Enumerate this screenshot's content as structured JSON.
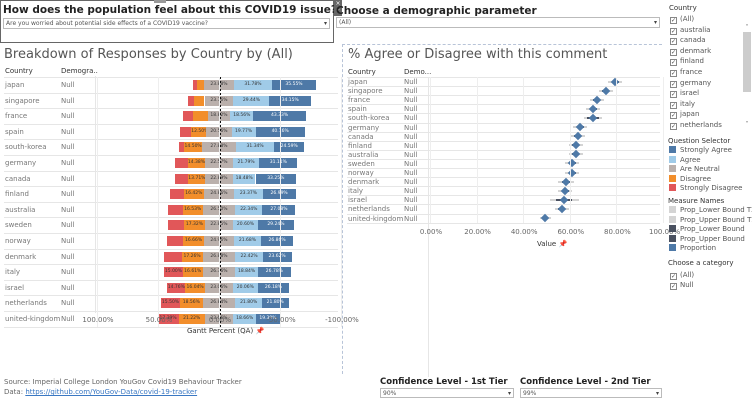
{
  "question_filter": {
    "title": "How does the population feel about this COVID19 issue?",
    "selected": "Are you worried about potential side effects of a COVID19 vaccine?"
  },
  "demographic_filter": {
    "title": "Choose a demographic parameter",
    "selected": "(All)"
  },
  "left_sheet": {
    "title": "Breakdown of Responses by Country by (All)",
    "col_country": "Country",
    "col_demo": "Demogra..",
    "x_axis_title": "Gantt Percent (QA)",
    "x_ticks": [
      "100.00%",
      "50.00%",
      "0.00%",
      "-50.00%",
      "-100.00%"
    ]
  },
  "right_sheet": {
    "title": "% Agree or Disagree with this comment",
    "col_country": "Country",
    "col_demo": "Demo...",
    "x_axis_title": "Value",
    "x_ticks": [
      "0.00%",
      "20.00%",
      "40.00%",
      "60.00%",
      "80.00%",
      "100.00%"
    ]
  },
  "country_filter": {
    "title": "Country",
    "items": [
      "(All)",
      "australia",
      "canada",
      "denmark",
      "finland",
      "france",
      "germany",
      "israel",
      "italy",
      "japan",
      "netherlands"
    ]
  },
  "question_legend": {
    "title": "Question Selector",
    "items": [
      {
        "label": "Strongly Agree",
        "color": "#4e79a7"
      },
      {
        "label": "Agree",
        "color": "#a0cbe8"
      },
      {
        "label": "Are Neutral",
        "color": "#bab0ac"
      },
      {
        "label": "Disagree",
        "color": "#f28e2b"
      },
      {
        "label": "Strongly Disagree",
        "color": "#e15759"
      }
    ]
  },
  "measure_legend": {
    "title": "Measure Names",
    "items": [
      {
        "label": "Prop_Lower Bound T2",
        "color": "#d4d4d4"
      },
      {
        "label": "Prop_Upper Bound T2",
        "color": "#d4d4d4"
      },
      {
        "label": "Prop_Lower Bound",
        "color": "#4a5160"
      },
      {
        "label": "Prop_Upper Bound",
        "color": "#4a5160"
      },
      {
        "label": "Proportion",
        "color": "#4e79a7"
      }
    ]
  },
  "category_filter": {
    "title": "Choose a category",
    "items": [
      "(All)",
      "Null"
    ]
  },
  "confidence_1": {
    "title": "Confidence Level - 1st Tier",
    "selected": "90%"
  },
  "confidence_2": {
    "title": "Confidence Level - 2nd Tier",
    "selected": "99%"
  },
  "footer": {
    "source": "Source: Imperial College London YouGov Covid19 Behaviour Tracker",
    "data_label": "Data: ",
    "data_link": "https://github.com/YouGov-Data/covid-19-tracker"
  },
  "chart_data": [
    {
      "type": "bar",
      "title": "Breakdown of Responses by Country by (All)",
      "xlabel": "Gantt Percent (QA)",
      "xlim": [
        100,
        -100
      ],
      "categories": [
        "japan",
        "singapore",
        "france",
        "spain",
        "south-korea",
        "germany",
        "canada",
        "finland",
        "australia",
        "sweden",
        "norway",
        "denmark",
        "italy",
        "israel",
        "netherlands",
        "united-kingdom"
      ],
      "demographic": "Null",
      "series": [
        {
          "name": "Strongly Disagree",
          "color": "#e15759",
          "values": [
            2.5,
            4.5,
            9.0,
            9.5,
            4.5,
            10.0,
            11.0,
            11.0,
            12.0,
            13.0,
            13.5,
            14.0,
            15.0,
            14.76,
            15.5,
            17.39
          ]
        },
        {
          "name": "Disagree",
          "color": "#f28e2b",
          "values": [
            6.5,
            9.0,
            11.5,
            12.5,
            14.5,
            14.38,
            13.71,
            16.42,
            16.53,
            17.32,
            16.66,
            17.26,
            16.61,
            16.04,
            18.56,
            21.22
          ]
        },
        {
          "name": "Are Neutral",
          "color": "#bab0ac",
          "values": [
            23.88,
            23.76,
            18.82,
            20.56,
            27.88,
            22.57,
            22.89,
            24.86,
            26.5,
            22.85,
            24.96,
            26.88,
            26.36,
            23.06,
            26.84,
            23.56
          ]
        },
        {
          "name": "Agree",
          "color": "#a0cbe8",
          "values": [
            31.78,
            29.44,
            18.56,
            19.77,
            31.34,
            21.79,
            18.48,
            23.37,
            22.34,
            20.6,
            21.68,
            22.42,
            18.84,
            20.06,
            21.8,
            18.66
          ]
        },
        {
          "name": "Strongly Agree",
          "color": "#4e79a7",
          "values": [
            35.55,
            34.15,
            43.33,
            40.16,
            24.59,
            31.11,
            33.25,
            26.99,
            27.08,
            29.24,
            26.86,
            23.62,
            26.78,
            26.18,
            21.8,
            19.39
          ]
        }
      ]
    },
    {
      "type": "scatter",
      "title": "% Agree or Disagree with this comment",
      "xlabel": "Value",
      "xlim": [
        0,
        100
      ],
      "categories": [
        "japan",
        "singapore",
        "france",
        "spain",
        "south-korea",
        "germany",
        "canada",
        "finland",
        "australia",
        "sweden",
        "norway",
        "denmark",
        "italy",
        "israel",
        "netherlands",
        "united-kingdom"
      ],
      "proportion": [
        79.5,
        75.5,
        71.5,
        70.0,
        70.0,
        64.5,
        63.5,
        62.5,
        62.5,
        61.0,
        61.0,
        58.5,
        58.0,
        57.5,
        56.5,
        49.5
      ],
      "ci_tier1": [
        [
          78,
          81
        ],
        [
          74,
          77
        ],
        [
          70,
          73
        ],
        [
          68.5,
          71.5
        ],
        [
          67.5,
          72.5
        ],
        [
          63,
          66
        ],
        [
          62,
          65
        ],
        [
          61,
          64
        ],
        [
          61,
          64
        ],
        [
          59.5,
          62.5
        ],
        [
          59.5,
          62.5
        ],
        [
          56.5,
          60.5
        ],
        [
          56.5,
          59.5
        ],
        [
          54,
          61
        ],
        [
          55,
          58
        ],
        [
          48.5,
          50.5
        ]
      ],
      "ci_tier2": [
        [
          76.5,
          82.5
        ],
        [
          72.5,
          78.5
        ],
        [
          68.5,
          74.5
        ],
        [
          67,
          73
        ],
        [
          66,
          74
        ],
        [
          61.5,
          67.5
        ],
        [
          60.5,
          66.5
        ],
        [
          59.5,
          65.5
        ],
        [
          59.5,
          65.5
        ],
        [
          58,
          64
        ],
        [
          58,
          64
        ],
        [
          55,
          62
        ],
        [
          55,
          61
        ],
        [
          51.5,
          64
        ],
        [
          53.5,
          59.5
        ],
        [
          47,
          52
        ]
      ]
    }
  ]
}
